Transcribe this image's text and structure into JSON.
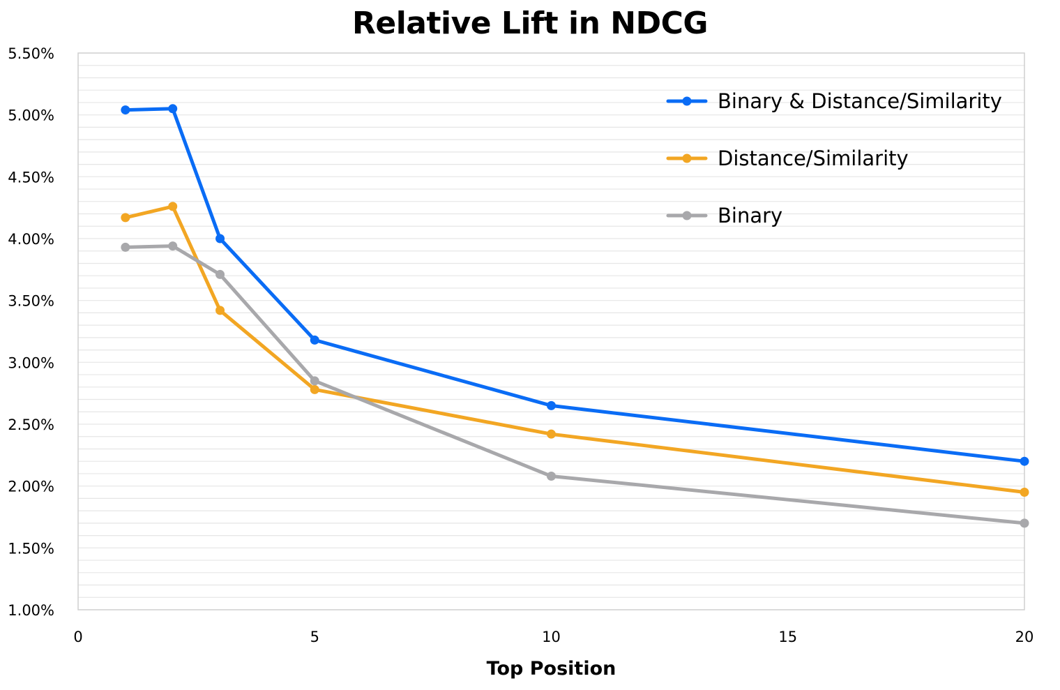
{
  "chart_data": {
    "type": "line",
    "title": "Relative Lift in NDCG",
    "xlabel": "Top Position",
    "ylabel": "",
    "xlim": [
      0,
      20
    ],
    "ylim": [
      1.0,
      5.5
    ],
    "x_ticks": [
      0,
      5,
      10,
      15,
      20
    ],
    "x_tick_labels": [
      "0",
      "5",
      "10",
      "15",
      "20"
    ],
    "y_ticks": [
      1.0,
      1.5,
      2.0,
      2.5,
      3.0,
      3.5,
      4.0,
      4.5,
      5.0,
      5.5
    ],
    "y_tick_labels": [
      "1.00%",
      "1.50%",
      "2.00%",
      "2.50%",
      "3.00%",
      "3.50%",
      "4.00%",
      "4.50%",
      "5.00%",
      "5.50%"
    ],
    "y_unit": "%",
    "grid": true,
    "legend_position": "top-right",
    "x": [
      1,
      2,
      3,
      5,
      10,
      20
    ],
    "series": [
      {
        "name": "Binary & Distance/Similarity",
        "color": "#0a6cf5",
        "values": [
          5.04,
          5.05,
          4.0,
          3.18,
          2.65,
          2.2
        ]
      },
      {
        "name": "Distance/Similarity",
        "color": "#f2a623",
        "values": [
          4.17,
          4.26,
          3.42,
          2.78,
          2.42,
          1.95
        ]
      },
      {
        "name": "Binary",
        "color": "#a8a8ab",
        "values": [
          3.93,
          3.94,
          3.71,
          2.85,
          2.08,
          1.7
        ]
      }
    ]
  }
}
